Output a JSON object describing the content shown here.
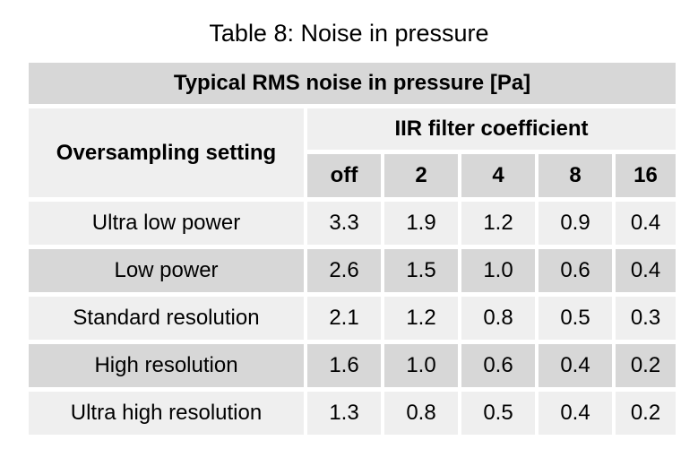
{
  "caption": "Table 8: Noise in pressure",
  "table": {
    "title": "Typical RMS noise in pressure [Pa]",
    "row_header": "Oversampling setting",
    "group_header": "IIR filter coefficient",
    "coefficients": [
      "off",
      "2",
      "4",
      "8",
      "16"
    ],
    "rows": [
      {
        "label": "Ultra low power",
        "values": [
          "3.3",
          "1.9",
          "1.2",
          "0.9",
          "0.4"
        ]
      },
      {
        "label": "Low power",
        "values": [
          "2.6",
          "1.5",
          "1.0",
          "0.6",
          "0.4"
        ]
      },
      {
        "label": "Standard resolution",
        "values": [
          "2.1",
          "1.2",
          "0.8",
          "0.5",
          "0.3"
        ]
      },
      {
        "label": "High resolution",
        "values": [
          "1.6",
          "1.0",
          "0.6",
          "0.4",
          "0.2"
        ]
      },
      {
        "label": "Ultra high resolution",
        "values": [
          "1.3",
          "0.8",
          "0.5",
          "0.4",
          "0.2"
        ]
      }
    ]
  },
  "colors": {
    "header_dark": "#d7d7d7",
    "header_light": "#efefef",
    "row_odd": "#efefef",
    "row_even": "#d7d7d7"
  }
}
